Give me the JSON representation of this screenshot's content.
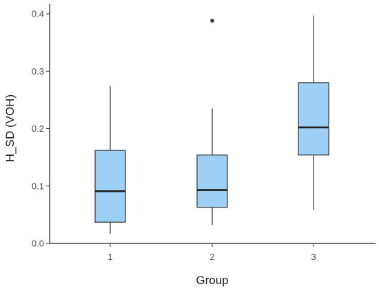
{
  "chart_data": {
    "type": "box",
    "xlabel": "Group",
    "ylabel": "H_SD (VOH)",
    "ylim": [
      0,
      0.4
    ],
    "y_ticks": [
      0.0,
      0.1,
      0.2,
      0.3,
      0.4
    ],
    "y_tick_labels": [
      "0.0",
      "0.1",
      "0.2",
      "0.3",
      "0.4"
    ],
    "categories": [
      "1",
      "2",
      "3"
    ],
    "grid": false,
    "box_fill": "#9ecff5",
    "box_stroke": "#333333",
    "boxes": [
      {
        "group": "1",
        "whisker_low": 0.017,
        "q1": 0.037,
        "median": 0.091,
        "q3": 0.162,
        "whisker_high": 0.274,
        "outliers": []
      },
      {
        "group": "2",
        "whisker_low": 0.032,
        "q1": 0.063,
        "median": 0.093,
        "q3": 0.154,
        "whisker_high": 0.235,
        "outliers": [
          0.388
        ]
      },
      {
        "group": "3",
        "whisker_low": 0.058,
        "q1": 0.154,
        "median": 0.202,
        "q3": 0.28,
        "whisker_high": 0.397,
        "outliers": []
      }
    ]
  }
}
